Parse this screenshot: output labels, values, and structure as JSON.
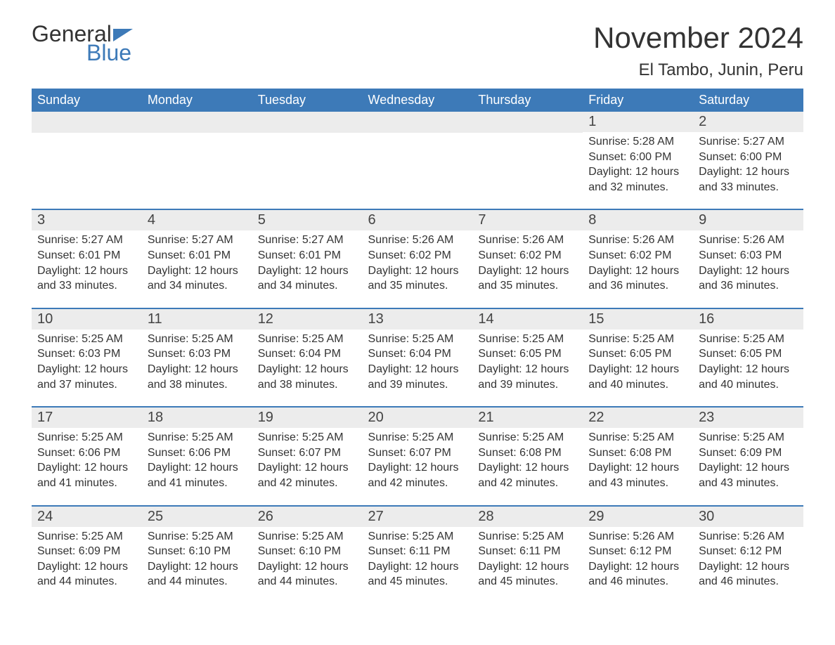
{
  "logo": {
    "text1": "General",
    "text2": "Blue"
  },
  "title": "November 2024",
  "location": "El Tambo, Junin, Peru",
  "colors": {
    "header_bg": "#3d7ab8",
    "header_text": "#ffffff",
    "day_number_bg": "#ececec",
    "text": "#333333",
    "logo_blue": "#3d7ab8",
    "row_border": "#3d7ab8"
  },
  "day_headers": [
    "Sunday",
    "Monday",
    "Tuesday",
    "Wednesday",
    "Thursday",
    "Friday",
    "Saturday"
  ],
  "weeks": [
    [
      {
        "day": null
      },
      {
        "day": null
      },
      {
        "day": null
      },
      {
        "day": null
      },
      {
        "day": null
      },
      {
        "day": "1",
        "sunrise": "5:28 AM",
        "sunset": "6:00 PM",
        "daylight": "12 hours and 32 minutes."
      },
      {
        "day": "2",
        "sunrise": "5:27 AM",
        "sunset": "6:00 PM",
        "daylight": "12 hours and 33 minutes."
      }
    ],
    [
      {
        "day": "3",
        "sunrise": "5:27 AM",
        "sunset": "6:01 PM",
        "daylight": "12 hours and 33 minutes."
      },
      {
        "day": "4",
        "sunrise": "5:27 AM",
        "sunset": "6:01 PM",
        "daylight": "12 hours and 34 minutes."
      },
      {
        "day": "5",
        "sunrise": "5:27 AM",
        "sunset": "6:01 PM",
        "daylight": "12 hours and 34 minutes."
      },
      {
        "day": "6",
        "sunrise": "5:26 AM",
        "sunset": "6:02 PM",
        "daylight": "12 hours and 35 minutes."
      },
      {
        "day": "7",
        "sunrise": "5:26 AM",
        "sunset": "6:02 PM",
        "daylight": "12 hours and 35 minutes."
      },
      {
        "day": "8",
        "sunrise": "5:26 AM",
        "sunset": "6:02 PM",
        "daylight": "12 hours and 36 minutes."
      },
      {
        "day": "9",
        "sunrise": "5:26 AM",
        "sunset": "6:03 PM",
        "daylight": "12 hours and 36 minutes."
      }
    ],
    [
      {
        "day": "10",
        "sunrise": "5:25 AM",
        "sunset": "6:03 PM",
        "daylight": "12 hours and 37 minutes."
      },
      {
        "day": "11",
        "sunrise": "5:25 AM",
        "sunset": "6:03 PM",
        "daylight": "12 hours and 38 minutes."
      },
      {
        "day": "12",
        "sunrise": "5:25 AM",
        "sunset": "6:04 PM",
        "daylight": "12 hours and 38 minutes."
      },
      {
        "day": "13",
        "sunrise": "5:25 AM",
        "sunset": "6:04 PM",
        "daylight": "12 hours and 39 minutes."
      },
      {
        "day": "14",
        "sunrise": "5:25 AM",
        "sunset": "6:05 PM",
        "daylight": "12 hours and 39 minutes."
      },
      {
        "day": "15",
        "sunrise": "5:25 AM",
        "sunset": "6:05 PM",
        "daylight": "12 hours and 40 minutes."
      },
      {
        "day": "16",
        "sunrise": "5:25 AM",
        "sunset": "6:05 PM",
        "daylight": "12 hours and 40 minutes."
      }
    ],
    [
      {
        "day": "17",
        "sunrise": "5:25 AM",
        "sunset": "6:06 PM",
        "daylight": "12 hours and 41 minutes."
      },
      {
        "day": "18",
        "sunrise": "5:25 AM",
        "sunset": "6:06 PM",
        "daylight": "12 hours and 41 minutes."
      },
      {
        "day": "19",
        "sunrise": "5:25 AM",
        "sunset": "6:07 PM",
        "daylight": "12 hours and 42 minutes."
      },
      {
        "day": "20",
        "sunrise": "5:25 AM",
        "sunset": "6:07 PM",
        "daylight": "12 hours and 42 minutes."
      },
      {
        "day": "21",
        "sunrise": "5:25 AM",
        "sunset": "6:08 PM",
        "daylight": "12 hours and 42 minutes."
      },
      {
        "day": "22",
        "sunrise": "5:25 AM",
        "sunset": "6:08 PM",
        "daylight": "12 hours and 43 minutes."
      },
      {
        "day": "23",
        "sunrise": "5:25 AM",
        "sunset": "6:09 PM",
        "daylight": "12 hours and 43 minutes."
      }
    ],
    [
      {
        "day": "24",
        "sunrise": "5:25 AM",
        "sunset": "6:09 PM",
        "daylight": "12 hours and 44 minutes."
      },
      {
        "day": "25",
        "sunrise": "5:25 AM",
        "sunset": "6:10 PM",
        "daylight": "12 hours and 44 minutes."
      },
      {
        "day": "26",
        "sunrise": "5:25 AM",
        "sunset": "6:10 PM",
        "daylight": "12 hours and 44 minutes."
      },
      {
        "day": "27",
        "sunrise": "5:25 AM",
        "sunset": "6:11 PM",
        "daylight": "12 hours and 45 minutes."
      },
      {
        "day": "28",
        "sunrise": "5:25 AM",
        "sunset": "6:11 PM",
        "daylight": "12 hours and 45 minutes."
      },
      {
        "day": "29",
        "sunrise": "5:26 AM",
        "sunset": "6:12 PM",
        "daylight": "12 hours and 46 minutes."
      },
      {
        "day": "30",
        "sunrise": "5:26 AM",
        "sunset": "6:12 PM",
        "daylight": "12 hours and 46 minutes."
      }
    ]
  ],
  "labels": {
    "sunrise": "Sunrise: ",
    "sunset": "Sunset: ",
    "daylight": "Daylight: "
  }
}
